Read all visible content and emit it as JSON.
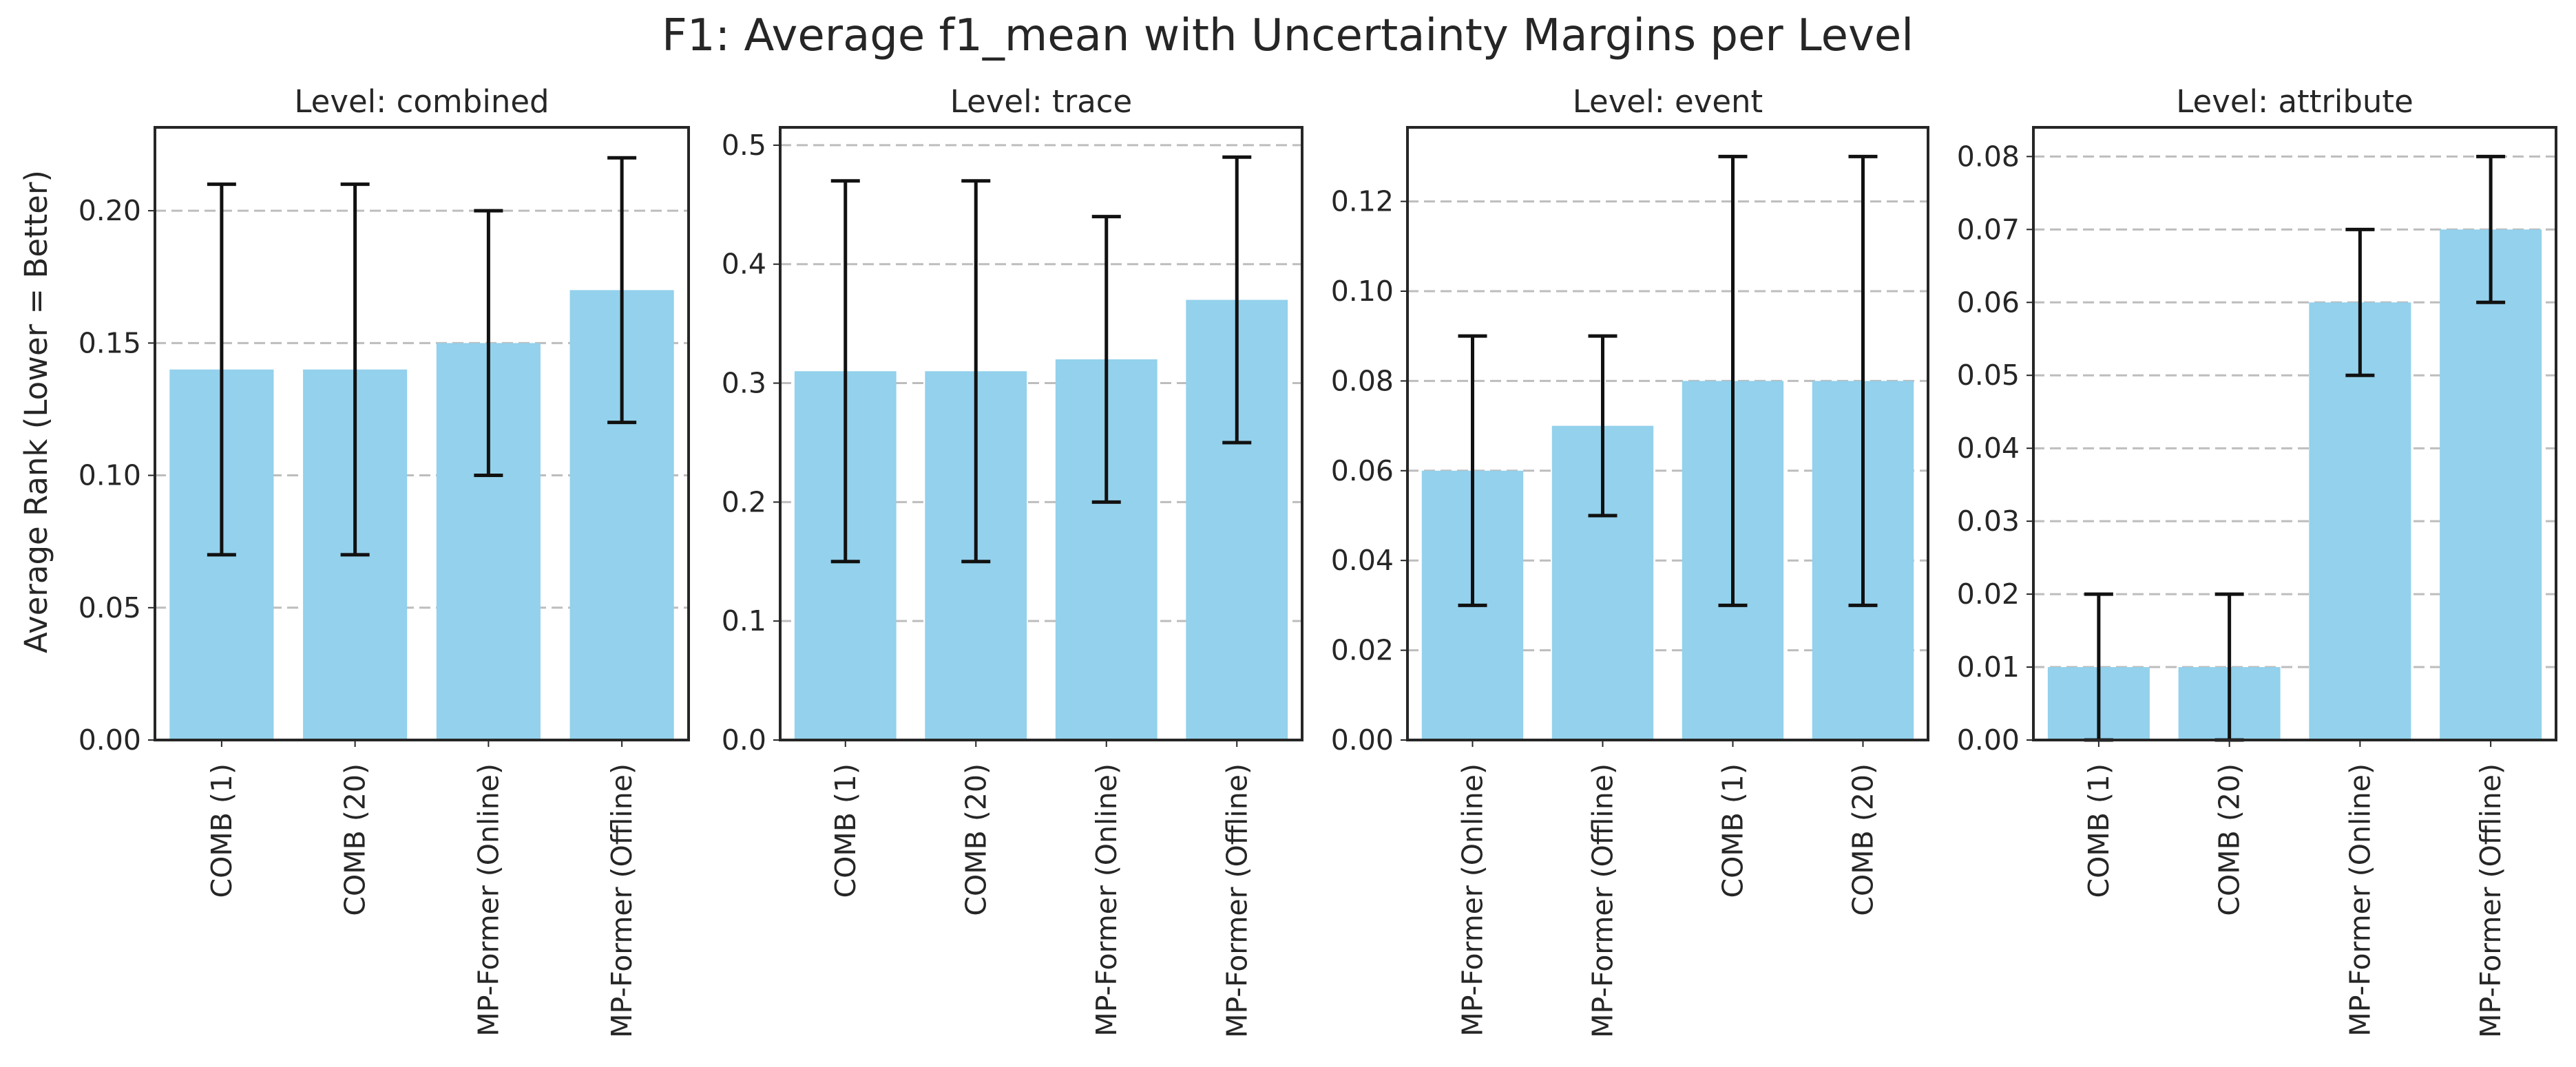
{
  "figure": {
    "title": "F1: Average f1_mean with Uncertainty Margins per Level",
    "ylabel": "Average Rank (Lower = Better)"
  },
  "colors": {
    "bar": "#93D1EC",
    "error_bar": "#111111",
    "grid": "#bdbdbd",
    "axes": "#262626",
    "text": "#262626"
  },
  "chart_data": [
    {
      "type": "bar",
      "title": "Level: combined",
      "categories": [
        "COMB (1)",
        "COMB (20)",
        "MP-Former (Online)",
        "MP-Former (Offline)"
      ],
      "values": [
        0.14,
        0.14,
        0.15,
        0.17
      ],
      "error_low": [
        0.07,
        0.07,
        0.1,
        0.12
      ],
      "error_high": [
        0.21,
        0.21,
        0.2,
        0.22
      ],
      "yticks": [
        0.0,
        0.05,
        0.1,
        0.15,
        0.2
      ],
      "ytick_labels": [
        "0.00",
        "0.05",
        "0.10",
        "0.15",
        "0.20"
      ],
      "ylim": [
        0,
        0.2315
      ],
      "grid": "y-dashed",
      "ylabel": "Average Rank (Lower = Better)"
    },
    {
      "type": "bar",
      "title": "Level: trace",
      "categories": [
        "COMB (1)",
        "COMB (20)",
        "MP-Former (Online)",
        "MP-Former (Offline)"
      ],
      "values": [
        0.31,
        0.31,
        0.32,
        0.37
      ],
      "error_low": [
        0.15,
        0.15,
        0.2,
        0.25
      ],
      "error_high": [
        0.47,
        0.47,
        0.44,
        0.49
      ],
      "yticks": [
        0.0,
        0.1,
        0.2,
        0.3,
        0.4,
        0.5
      ],
      "ytick_labels": [
        "0.0",
        "0.1",
        "0.2",
        "0.3",
        "0.4",
        "0.5"
      ],
      "ylim": [
        0,
        0.515
      ],
      "grid": "y-dashed",
      "ylabel": ""
    },
    {
      "type": "bar",
      "title": "Level: event",
      "categories": [
        "MP-Former (Online)",
        "MP-Former (Offline)",
        "COMB (1)",
        "COMB (20)"
      ],
      "values": [
        0.06,
        0.07,
        0.08,
        0.08
      ],
      "error_low": [
        0.03,
        0.05,
        0.03,
        0.03
      ],
      "error_high": [
        0.09,
        0.09,
        0.13,
        0.13
      ],
      "yticks": [
        0.0,
        0.02,
        0.04,
        0.06,
        0.08,
        0.1,
        0.12
      ],
      "ytick_labels": [
        "0.00",
        "0.02",
        "0.04",
        "0.06",
        "0.08",
        "0.10",
        "0.12"
      ],
      "ylim": [
        0,
        0.1365
      ],
      "grid": "y-dashed",
      "ylabel": ""
    },
    {
      "type": "bar",
      "title": "Level: attribute",
      "categories": [
        "COMB (1)",
        "COMB (20)",
        "MP-Former (Online)",
        "MP-Former (Offline)"
      ],
      "values": [
        0.01,
        0.01,
        0.06,
        0.07
      ],
      "error_low": [
        0.0,
        0.0,
        0.05,
        0.06
      ],
      "error_high": [
        0.02,
        0.02,
        0.07,
        0.08
      ],
      "yticks": [
        0.0,
        0.01,
        0.02,
        0.03,
        0.04,
        0.05,
        0.06,
        0.07,
        0.08
      ],
      "ytick_labels": [
        "0.00",
        "0.01",
        "0.02",
        "0.03",
        "0.04",
        "0.05",
        "0.06",
        "0.07",
        "0.08"
      ],
      "ylim": [
        0,
        0.084
      ],
      "grid": "y-dashed",
      "ylabel": ""
    }
  ]
}
